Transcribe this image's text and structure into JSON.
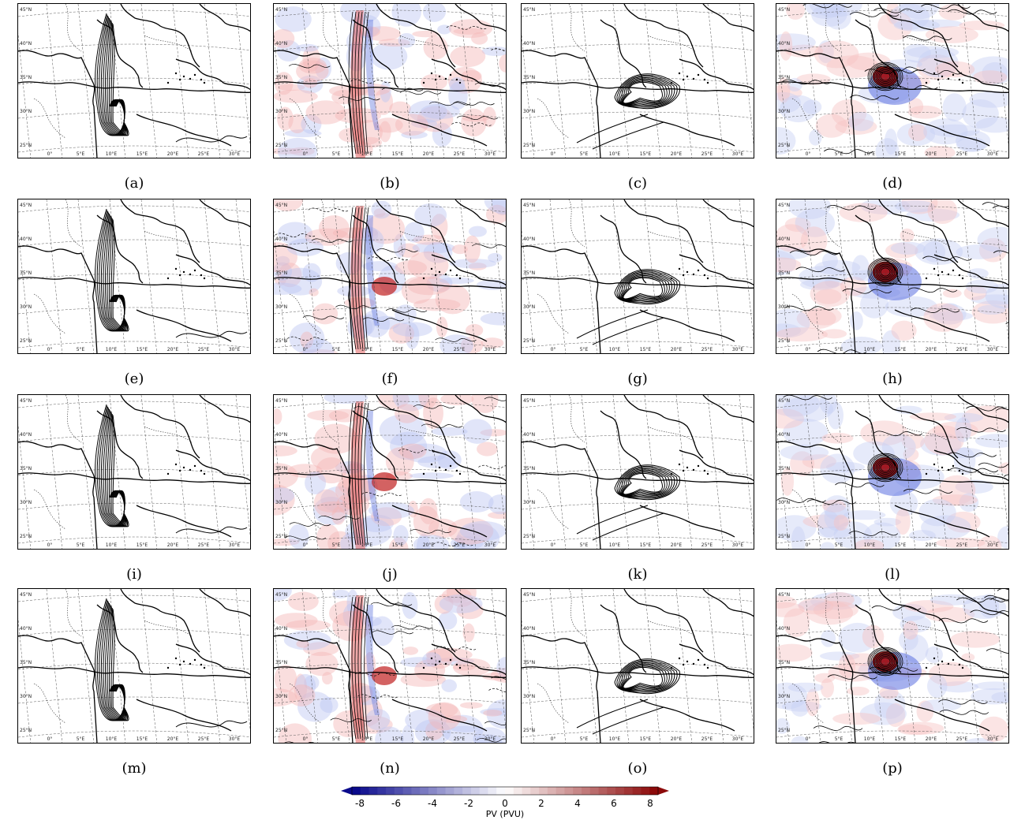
{
  "panels": [
    {
      "label": "(a)",
      "type": "lines"
    },
    {
      "label": "(b)",
      "type": "pv"
    },
    {
      "label": "(c)",
      "type": "blob"
    },
    {
      "label": "(d)",
      "type": "pvblob"
    },
    {
      "label": "(e)",
      "type": "lines"
    },
    {
      "label": "(f)",
      "type": "pv"
    },
    {
      "label": "(g)",
      "type": "blob"
    },
    {
      "label": "(h)",
      "type": "pvblob"
    },
    {
      "label": "(i)",
      "type": "lines"
    },
    {
      "label": "(j)",
      "type": "pv"
    },
    {
      "label": "(k)",
      "type": "blob"
    },
    {
      "label": "(l)",
      "type": "pvblob"
    },
    {
      "label": "(m)",
      "type": "lines"
    },
    {
      "label": "(n)",
      "type": "pv"
    },
    {
      "label": "(o)",
      "type": "blob"
    },
    {
      "label": "(p)",
      "type": "pvblob"
    }
  ],
  "lat_labels": [
    "45°N",
    "40°N",
    "35°N",
    "30°N",
    "25°N"
  ],
  "lon_labels": [
    "0°",
    "5°E",
    "10°E",
    "15°E",
    "20°E",
    "25°E",
    "30°E"
  ],
  "colorbar": {
    "ticks": [
      "-8",
      "-6",
      "-4",
      "-2",
      "0",
      "2",
      "4",
      "6",
      "8"
    ],
    "label": "PV (PVU)",
    "neg_color": "#0a0a8c",
    "pos_color": "#8c0a0a"
  }
}
